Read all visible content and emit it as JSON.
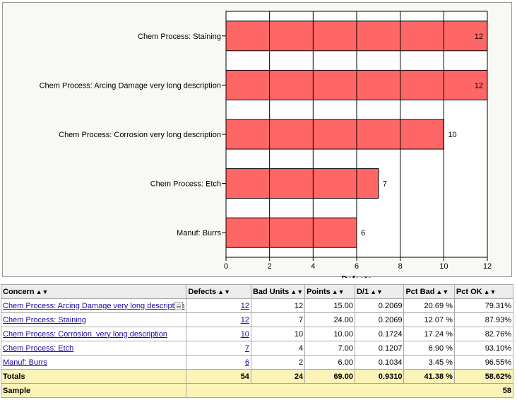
{
  "chart_data": {
    "type": "bar",
    "orientation": "horizontal",
    "categories": [
      "Chem Process: Staining",
      "Chem Process: Arcing Damage very long description",
      "Chem Process: Corrosion very long description",
      "Chem Process: Etch",
      "Manuf: Burrs"
    ],
    "values": [
      12,
      12,
      10,
      7,
      6
    ],
    "xlabel": "Defects",
    "xlim": [
      0,
      12
    ],
    "xticks": [
      0,
      2,
      4,
      6,
      8,
      10,
      12
    ],
    "grid": true,
    "bar_color": "#ff6666"
  },
  "table": {
    "headers": [
      "Concern",
      "Defects",
      "Bad Units",
      "Points",
      "D/1",
      "Pct Bad",
      "Pct OK"
    ],
    "sort_indicator": "▲▼",
    "rows": [
      {
        "concern": "Chem Process: Arcing Damage very long description",
        "defects": "12",
        "bad_units": "12",
        "points": "15.00",
        "d1": "0.2069",
        "pct_bad": "20.69 %",
        "pct_ok": "79.31%",
        "has_note": true
      },
      {
        "concern": "Chem Process: Staining",
        "defects": "12",
        "bad_units": "7",
        "points": "24.00",
        "d1": "0.2069",
        "pct_bad": "12.07 %",
        "pct_ok": "87.93%"
      },
      {
        "concern": "Chem Process: Corrosion  very long description",
        "defects": "10",
        "bad_units": "10",
        "points": "10.00",
        "d1": "0.1724",
        "pct_bad": "17.24 %",
        "pct_ok": "82.76%"
      },
      {
        "concern": "Chem Process: Etch",
        "defects": "7",
        "bad_units": "4",
        "points": "7.00",
        "d1": "0.1207",
        "pct_bad": "6.90 %",
        "pct_ok": "93.10%"
      },
      {
        "concern": "Manuf: Burrs",
        "defects": "6",
        "bad_units": "2",
        "points": "6.00",
        "d1": "0.1034",
        "pct_bad": "3.45 %",
        "pct_ok": "96.55%"
      }
    ],
    "totals": {
      "label": "Totals",
      "defects": "54",
      "bad_units": "24",
      "points": "69.00",
      "d1": "0.9310",
      "pct_bad": "41.38 %",
      "pct_ok": "58.62%"
    },
    "sample": {
      "label": "Sample",
      "value": "58"
    }
  }
}
